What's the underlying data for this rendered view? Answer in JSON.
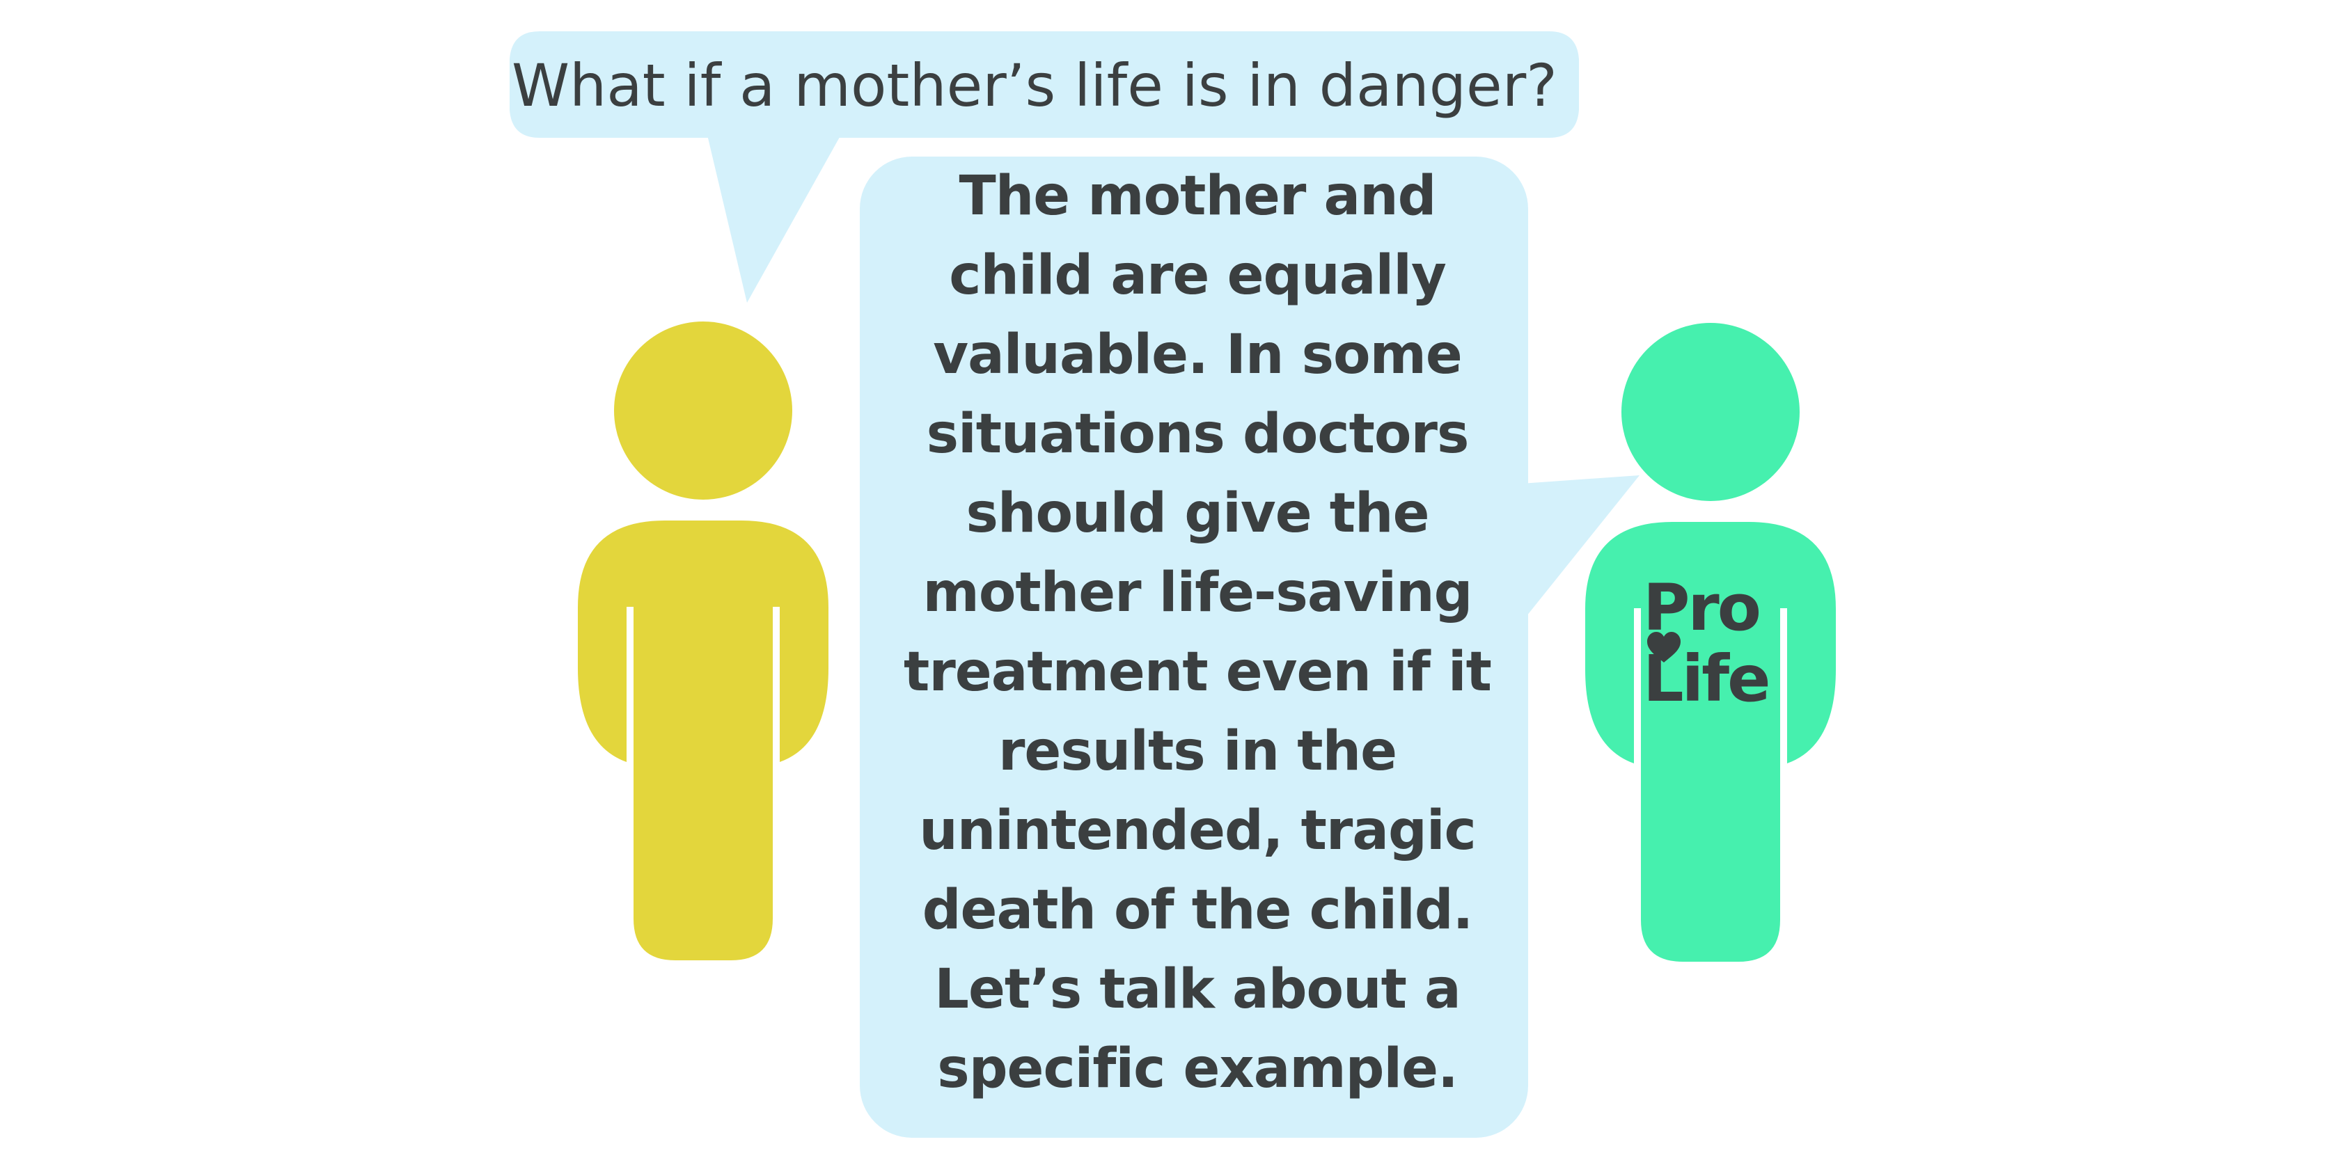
{
  "colors": {
    "bubble": "#d4f1fb",
    "text": "#3b3f40",
    "questioner_figure": "#e3d63c",
    "pro_life_figure": "#46f0ae",
    "background": "#ffffff"
  },
  "question": {
    "text": "What if a mother’s life is in danger?"
  },
  "answer": {
    "lines": [
      "The mother and",
      "child are equally",
      "valuable. In some",
      "situations doctors",
      "should give the",
      "mother life-saving",
      "treatment even if it",
      "results in the",
      "unintended, tragic",
      "death of the child.",
      "Let’s talk about a",
      "specific example."
    ]
  },
  "pro_life_shirt": {
    "line1": "Pro",
    "line2": "Life",
    "icon": "heart-icon"
  },
  "figures": {
    "left": "person-icon",
    "right": "person-icon"
  }
}
